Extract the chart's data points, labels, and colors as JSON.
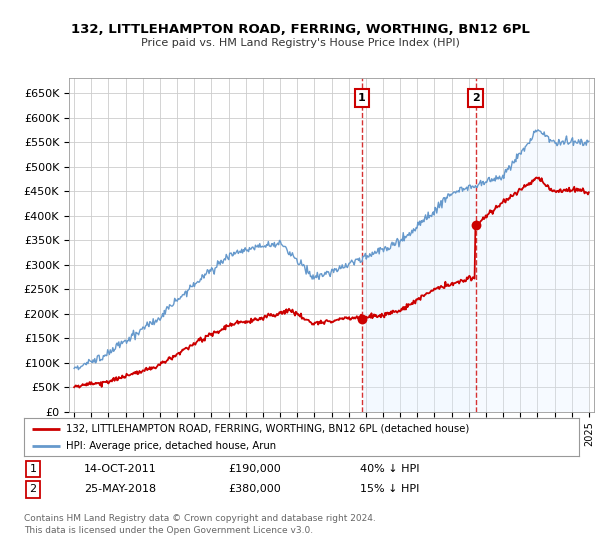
{
  "title": "132, LITTLEHAMPTON ROAD, FERRING, WORTHING, BN12 6PL",
  "subtitle": "Price paid vs. HM Land Registry's House Price Index (HPI)",
  "ylim": [
    0,
    680000
  ],
  "yticks": [
    0,
    50000,
    100000,
    150000,
    200000,
    250000,
    300000,
    350000,
    400000,
    450000,
    500000,
    550000,
    600000,
    650000
  ],
  "ytick_labels": [
    "£0",
    "£50K",
    "£100K",
    "£150K",
    "£200K",
    "£250K",
    "£300K",
    "£350K",
    "£400K",
    "£450K",
    "£500K",
    "£550K",
    "£600K",
    "£650K"
  ],
  "purchase1_date": "14-OCT-2011",
  "purchase1_price": 190000,
  "purchase1_label": "£190,000",
  "purchase1_pct": "40% ↓ HPI",
  "purchase1_x": 2011.78,
  "purchase2_date": "25-MAY-2018",
  "purchase2_price": 380000,
  "purchase2_label": "£380,000",
  "purchase2_pct": "15% ↓ HPI",
  "purchase2_x": 2018.4,
  "legend_property": "132, LITTLEHAMPTON ROAD, FERRING, WORTHING, BN12 6PL (detached house)",
  "legend_hpi": "HPI: Average price, detached house, Arun",
  "footnote1": "Contains HM Land Registry data © Crown copyright and database right 2024.",
  "footnote2": "This data is licensed under the Open Government Licence v3.0.",
  "property_color": "#cc0000",
  "hpi_color": "#6699cc",
  "hpi_fill_color": "#ddeeff",
  "marker_color": "#cc0000",
  "vline_color": "#cc0000",
  "bg_color": "#ffffff",
  "grid_color": "#cccccc",
  "xlim_left": 1994.7,
  "xlim_right": 2025.3
}
